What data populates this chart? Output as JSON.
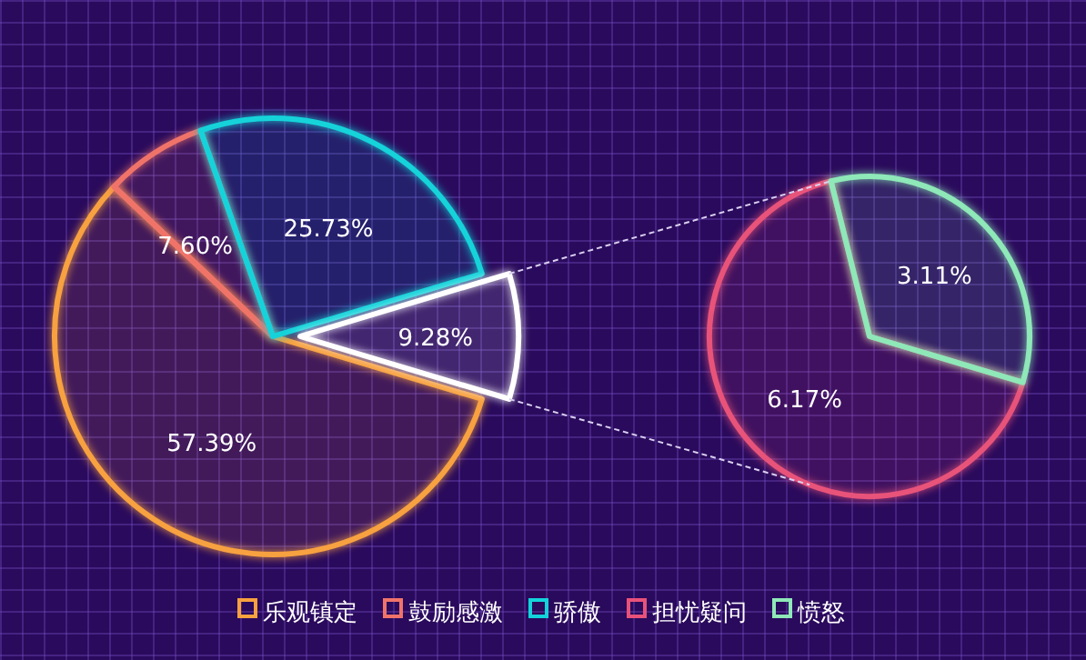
{
  "chart_data": [
    {
      "type": "pie",
      "categories": [
        "乐观镇定",
        "鼓励感激",
        "骄傲",
        null
      ],
      "values": [
        57.39,
        7.6,
        25.73,
        9.28
      ],
      "value_labels": [
        "57.39%",
        "7.60%",
        "25.73%",
        "9.28%"
      ],
      "colors": [
        "#f7a13f",
        "#f0736a",
        "#12d3da",
        "#ffffff"
      ],
      "legend": "bottom"
    },
    {
      "type": "pie",
      "categories": [
        "担忧疑问",
        "愤怒"
      ],
      "values": [
        6.17,
        3.11
      ],
      "value_labels": [
        "6.17%",
        "3.11%"
      ],
      "colors": [
        "#e8527a",
        "#8ee8b8"
      ],
      "legend": "bottom"
    }
  ]
}
